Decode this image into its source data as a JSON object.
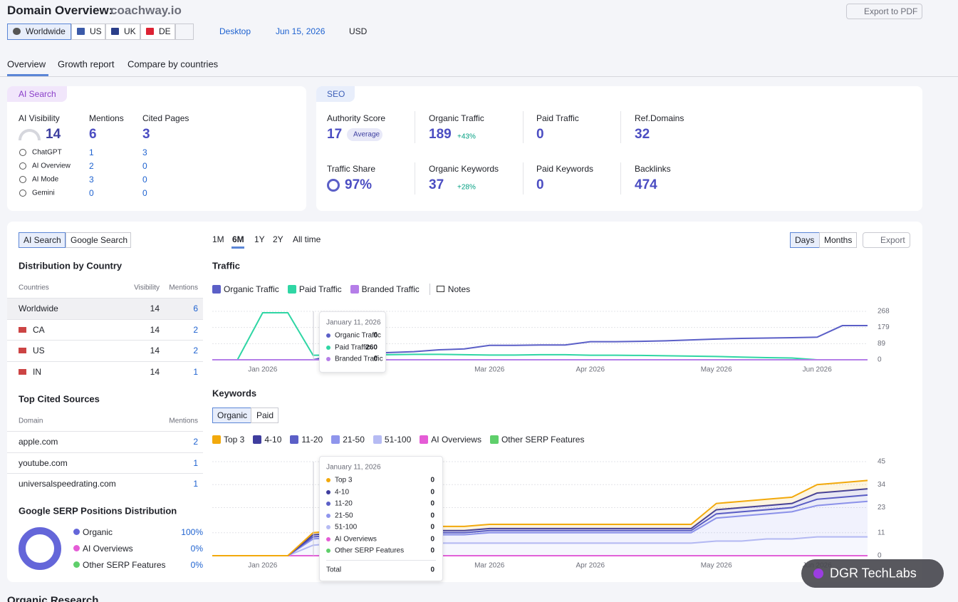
{
  "header": {
    "title": "Domain Overview:",
    "domain": "coachway.io",
    "export_pdf": "Export to PDF",
    "regions": [
      "Worldwide",
      "US",
      "UK",
      "DE"
    ],
    "device": "Desktop",
    "date": "Jun 15, 2026",
    "currency": "USD"
  },
  "tabs": [
    "Overview",
    "Growth report",
    "Compare by countries"
  ],
  "ai_search": {
    "badge": "AI Search",
    "metrics": [
      {
        "label": "AI Visibility",
        "value": 14
      },
      {
        "label": "Mentions",
        "value": 6
      },
      {
        "label": "Cited Pages",
        "value": 3
      }
    ],
    "platforms": [
      {
        "name": "ChatGPT",
        "mentions": 1,
        "cited": 3
      },
      {
        "name": "AI Overview",
        "mentions": 2,
        "cited": 0
      },
      {
        "name": "AI Mode",
        "mentions": 3,
        "cited": 0
      },
      {
        "name": "Gemini",
        "mentions": 0,
        "cited": 0
      }
    ]
  },
  "seo": {
    "badge": "SEO",
    "metrics": [
      {
        "label": "Authority Score",
        "value": 17,
        "tag": "Average"
      },
      {
        "label": "Organic Traffic",
        "value": 189,
        "change": "+43%"
      },
      {
        "label": "Paid Traffic",
        "value": 0
      },
      {
        "label": "Ref.Domains",
        "value": 32
      },
      {
        "label": "Traffic Share",
        "value": "97%"
      },
      {
        "label": "Organic Keywords",
        "value": 37,
        "change": "+28%"
      },
      {
        "label": "Paid Keywords",
        "value": 0
      },
      {
        "label": "Backlinks",
        "value": 474
      }
    ]
  },
  "left": {
    "toggle": [
      "AI Search",
      "Google Search"
    ],
    "distribution": {
      "title": "Distribution by Country",
      "columns": [
        "Countries",
        "Visibility",
        "Mentions"
      ],
      "rows": [
        [
          "Worldwide",
          14,
          6
        ],
        [
          "CA",
          14,
          2
        ],
        [
          "US",
          14,
          2
        ],
        [
          "IN",
          14,
          1
        ]
      ]
    },
    "cited": {
      "title": "Top Cited Sources",
      "columns": [
        "Domain",
        "Mentions"
      ],
      "rows": [
        [
          "apple.com",
          2
        ],
        [
          "youtube.com",
          1
        ],
        [
          "universalspeedrating.com",
          1
        ]
      ]
    },
    "serp": {
      "title": "Google SERP Positions Distribution",
      "items": [
        {
          "name": "Organic",
          "value": 100,
          "label": "100%",
          "color": "#6466d9"
        },
        {
          "name": "AI Overviews",
          "value": 0,
          "label": "0%",
          "color": "#e55cd6"
        },
        {
          "name": "Other SERP Features",
          "value": 0,
          "label": "0%",
          "color": "#5fcf6b"
        }
      ]
    }
  },
  "controls": {
    "periods": [
      "1M",
      "6M",
      "1Y",
      "2Y",
      "All time"
    ],
    "granularity": [
      "Days",
      "Months"
    ],
    "export": "Export"
  },
  "traffic": {
    "type": "line",
    "title": "Traffic",
    "notes": "Notes",
    "categories": [
      null,
      null,
      "Jan 2026",
      null,
      null,
      null,
      null,
      null,
      null,
      null,
      null,
      "Mar 2026",
      null,
      null,
      null,
      "Apr 2026",
      null,
      null,
      null,
      null,
      "May 2026",
      null,
      null,
      null,
      "Jun 2026",
      null,
      null
    ],
    "series": [
      {
        "name": "Organic Traffic",
        "color": "#5b5fc7",
        "values": [
          0,
          0,
          0,
          0,
          0,
          30,
          35,
          40,
          45,
          55,
          60,
          80,
          80,
          82,
          82,
          100,
          100,
          102,
          105,
          110,
          115,
          118,
          120,
          122,
          125,
          189,
          189
        ]
      },
      {
        "name": "Paid Traffic",
        "color": "#2fd6a4",
        "values": [
          0,
          0,
          260,
          260,
          25,
          25,
          28,
          28,
          30,
          30,
          28,
          26,
          26,
          28,
          28,
          25,
          25,
          24,
          22,
          20,
          18,
          15,
          12,
          10,
          0,
          0,
          0
        ]
      },
      {
        "name": "Branded Traffic",
        "color": "#b57ee8",
        "values": [
          0,
          0,
          0,
          0,
          0,
          0,
          0,
          0,
          0,
          0,
          0,
          0,
          0,
          0,
          0,
          0,
          0,
          0,
          0,
          0,
          0,
          0,
          0,
          0,
          0,
          0,
          0
        ]
      }
    ],
    "ylim": [
      0,
      268
    ],
    "yticks": [
      0,
      89,
      179,
      268
    ],
    "grid": true,
    "tooltip": {
      "date": "January 11, 2026",
      "values": [
        0,
        260,
        0
      ]
    }
  },
  "keywords": {
    "type": "stacked-area",
    "title": "Keywords",
    "toggle": [
      "Organic",
      "Paid"
    ],
    "categories": [
      null,
      null,
      "Jan 2026",
      null,
      null,
      null,
      null,
      null,
      null,
      null,
      null,
      "Mar 2026",
      null,
      null,
      null,
      "Apr 2026",
      null,
      null,
      null,
      null,
      "May 2026",
      null,
      null,
      null,
      "Jun 2026",
      null,
      null
    ],
    "series": [
      {
        "name": "Top 3",
        "color": "#f2a90c",
        "values": [
          0,
          0,
          0,
          0,
          1,
          1,
          1,
          1,
          2,
          2,
          2,
          2,
          2,
          2,
          2,
          2,
          2,
          2,
          2,
          2,
          3,
          3,
          3,
          3,
          4,
          4,
          4
        ]
      },
      {
        "name": "4-10",
        "color": "#3f3d9e",
        "values": [
          0,
          0,
          0,
          0,
          1,
          1,
          1,
          1,
          1,
          1,
          1,
          1,
          1,
          1,
          1,
          1,
          1,
          1,
          1,
          1,
          2,
          2,
          2,
          2,
          3,
          3,
          3
        ]
      },
      {
        "name": "11-20",
        "color": "#5b5fc7",
        "values": [
          0,
          0,
          0,
          0,
          1,
          1,
          1,
          1,
          1,
          1,
          1,
          1,
          1,
          1,
          1,
          1,
          1,
          1,
          1,
          1,
          2,
          2,
          2,
          2,
          3,
          3,
          3
        ]
      },
      {
        "name": "21-50",
        "color": "#8f95ec",
        "values": [
          0,
          0,
          0,
          0,
          3,
          3,
          3,
          4,
          4,
          4,
          4,
          5,
          5,
          5,
          5,
          5,
          5,
          5,
          5,
          5,
          11,
          12,
          12,
          13,
          15,
          16,
          17
        ]
      },
      {
        "name": "51-100",
        "color": "#b6bbf3",
        "values": [
          0,
          0,
          0,
          0,
          5,
          6,
          6,
          6,
          6,
          6,
          6,
          6,
          6,
          6,
          6,
          6,
          6,
          6,
          6,
          6,
          7,
          7,
          8,
          8,
          9,
          9,
          9
        ]
      },
      {
        "name": "AI Overviews",
        "color": "#e55cd6",
        "values": [
          0,
          0,
          0,
          0,
          0,
          0,
          0,
          0,
          0,
          0,
          0,
          0,
          0,
          0,
          0,
          0,
          0,
          0,
          0,
          0,
          0,
          0,
          0,
          0,
          0,
          0,
          0
        ]
      },
      {
        "name": "Other SERP Features",
        "color": "#5fcf6b",
        "values": [
          0,
          0,
          0,
          0,
          0,
          0,
          0,
          0,
          0,
          0,
          0,
          0,
          0,
          0,
          0,
          0,
          0,
          0,
          0,
          0,
          0,
          0,
          0,
          0,
          0,
          0,
          0
        ]
      }
    ],
    "ylim": [
      0,
      45
    ],
    "yticks": [
      0,
      11,
      23,
      34,
      45
    ],
    "grid": true,
    "tooltip": {
      "date": "January 11, 2026",
      "values": [
        0,
        0,
        0,
        0,
        0,
        0,
        0
      ],
      "total_label": "Total",
      "total": 0
    }
  },
  "watermark": "DGR TechLabs",
  "next_section": "Organic Research"
}
